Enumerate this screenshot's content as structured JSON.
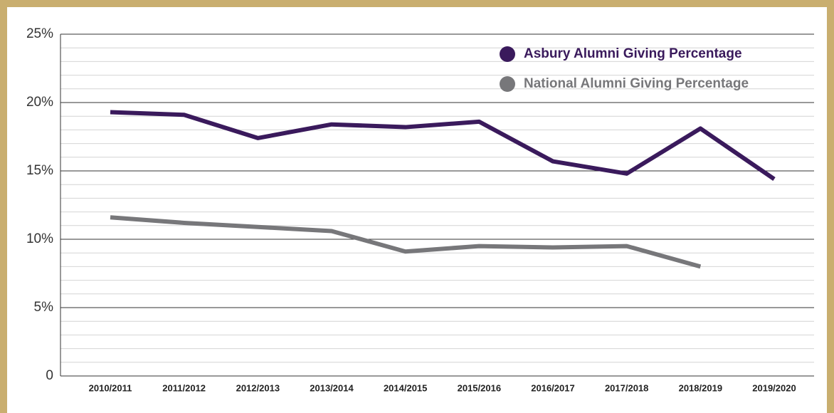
{
  "chart_data": {
    "type": "line",
    "categories": [
      "2010/2011",
      "2011/2012",
      "2012/2013",
      "2013/2014",
      "2014/2015",
      "2015/2016",
      "2016/2017",
      "2017/2018",
      "2018/2019",
      "2019/2020"
    ],
    "series": [
      {
        "name": "Asbury Alumni Giving Percentage",
        "color": "#3a1a5c",
        "values": [
          19.3,
          19.1,
          17.4,
          18.4,
          18.2,
          18.6,
          15.7,
          14.8,
          18.1,
          14.4
        ]
      },
      {
        "name": "National Alumni Giving Percentage",
        "color": "#77777a",
        "values": [
          11.6,
          11.2,
          10.9,
          10.6,
          9.1,
          9.5,
          9.4,
          9.5,
          8.0,
          null
        ]
      }
    ],
    "ylim": [
      0,
      25
    ],
    "yticks": [
      0,
      {
        "value": 5,
        "label": "5%"
      },
      {
        "value": 10,
        "label": "10%"
      },
      {
        "value": 15,
        "label": "15%"
      },
      {
        "value": 20,
        "label": "20%"
      },
      {
        "value": 25,
        "label": "25%"
      }
    ],
    "minor_yticks": [
      1,
      2,
      3,
      4,
      6,
      7,
      8,
      9,
      11,
      12,
      13,
      14,
      16,
      17,
      18,
      19,
      21,
      22,
      23,
      24
    ],
    "grid": true,
    "legend": "top-right"
  }
}
